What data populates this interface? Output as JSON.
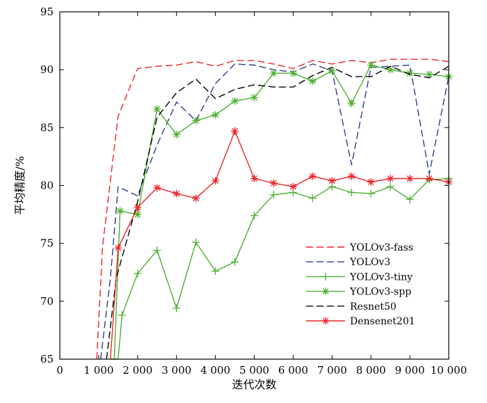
{
  "chart_data": {
    "type": "line",
    "title": "",
    "xlabel": "迭代次数",
    "ylabel": "平均精度/%",
    "xlim": [
      0,
      10000
    ],
    "ylim": [
      65,
      95
    ],
    "x_ticks": [
      0,
      1000,
      2000,
      3000,
      4000,
      5000,
      6000,
      7000,
      8000,
      9000,
      10000
    ],
    "x_tick_labels": [
      "0",
      "1 000",
      "2 000",
      "3 000",
      "4 000",
      "5 000",
      "6 000",
      "7 000",
      "8 000",
      "9 000",
      "10 000"
    ],
    "y_ticks": [
      65,
      70,
      75,
      80,
      85,
      90,
      95
    ],
    "y_tick_labels": [
      "65",
      "70",
      "75",
      "80",
      "85",
      "90",
      "95"
    ],
    "grid": false,
    "legend_position": "bottom-right",
    "series": [
      {
        "name": "YOLOv3-fass",
        "color": "#e8242a",
        "line_style": "dashed",
        "marker": "none",
        "x": [
          950,
          1100,
          1500,
          2000,
          2500,
          3000,
          3500,
          4000,
          4500,
          5000,
          5500,
          6000,
          6500,
          7000,
          7500,
          8000,
          8500,
          9000,
          9500,
          10000
        ],
        "y": [
          65.0,
          74.8,
          86.0,
          90.1,
          90.3,
          90.4,
          90.7,
          90.3,
          90.8,
          90.8,
          90.5,
          90.1,
          90.8,
          90.5,
          90.8,
          90.6,
          90.9,
          90.9,
          90.9,
          90.7
        ]
      },
      {
        "name": "YOLOv3",
        "color": "#2b3a8f",
        "line_style": "dashed",
        "marker": "none",
        "x": [
          1050,
          1300,
          1500,
          2000,
          2500,
          3000,
          3500,
          4000,
          4500,
          5000,
          5500,
          6000,
          6500,
          7000,
          7500,
          8000,
          8500,
          9000,
          9500,
          10000
        ],
        "y": [
          65.0,
          72.0,
          79.9,
          79.1,
          83.5,
          87.2,
          85.6,
          88.8,
          90.5,
          90.4,
          90.0,
          89.8,
          90.5,
          89.9,
          81.8,
          90.2,
          90.3,
          90.4,
          81.0,
          89.4
        ]
      },
      {
        "name": "YOLOv3-tiny",
        "color": "#4caf32",
        "line_style": "solid",
        "marker": "plus",
        "x": [
          1300,
          1500,
          1600,
          2000,
          2500,
          3000,
          3500,
          4000,
          4500,
          5000,
          5500,
          6000,
          6500,
          7000,
          7500,
          8000,
          8500,
          9000,
          9500,
          10000
        ],
        "y": [
          65.0,
          65.0,
          68.8,
          72.4,
          74.4,
          69.4,
          75.1,
          72.6,
          73.4,
          77.4,
          79.2,
          79.4,
          78.9,
          79.9,
          79.4,
          79.3,
          79.9,
          78.8,
          80.5,
          80.6
        ]
      },
      {
        "name": "YOLOv3-spp",
        "color": "#4caf32",
        "line_style": "solid",
        "marker": "asterisk",
        "x": [
          1400,
          1550,
          2000,
          2500,
          3000,
          3500,
          4000,
          4500,
          5000,
          5500,
          6000,
          6500,
          7000,
          7500,
          8000,
          8500,
          9000,
          9500,
          10000
        ],
        "y": [
          65.0,
          77.8,
          77.5,
          86.6,
          84.4,
          85.6,
          86.1,
          87.3,
          87.6,
          89.7,
          89.7,
          89.0,
          89.9,
          87.1,
          90.4,
          90.0,
          89.7,
          89.6,
          89.4
        ]
      },
      {
        "name": "Resnet50",
        "color": "#000000",
        "line_style": "dashed",
        "marker": "none",
        "x": [
          1200,
          1450,
          2000,
          2500,
          3000,
          3500,
          4000,
          4500,
          5000,
          5500,
          6000,
          6500,
          7000,
          7500,
          8000,
          8500,
          9000,
          9500,
          10000
        ],
        "y": [
          65.0,
          72.0,
          78.6,
          85.9,
          88.0,
          89.2,
          87.5,
          88.3,
          88.7,
          88.5,
          88.5,
          89.5,
          90.2,
          89.4,
          89.4,
          90.3,
          89.6,
          89.3,
          90.3
        ]
      },
      {
        "name": "Densenet201",
        "color": "#e8242a",
        "line_style": "solid",
        "marker": "asterisk",
        "x": [
          1300,
          1500,
          2000,
          2500,
          3000,
          3500,
          4000,
          4500,
          5000,
          5500,
          6000,
          6500,
          7000,
          7500,
          8000,
          8500,
          9000,
          9500,
          10000
        ],
        "y": [
          65.0,
          74.6,
          78.1,
          79.8,
          79.3,
          78.9,
          80.4,
          84.7,
          80.6,
          80.2,
          79.9,
          80.8,
          80.4,
          80.8,
          80.3,
          80.6,
          80.6,
          80.6,
          80.3
        ]
      }
    ]
  }
}
